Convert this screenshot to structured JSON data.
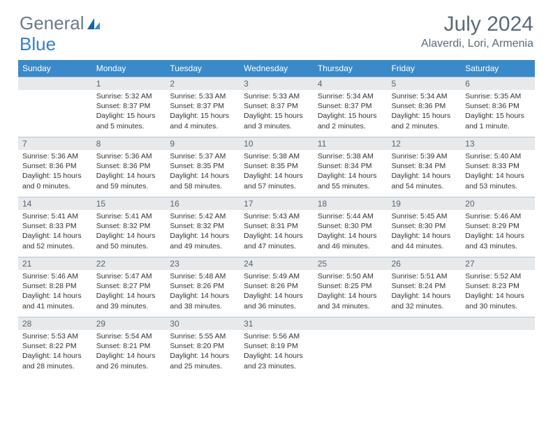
{
  "logo": {
    "text1": "General",
    "text2": "Blue"
  },
  "title": "July 2024",
  "location": "Alaverdi, Lori, Armenia",
  "dayNames": [
    "Sunday",
    "Monday",
    "Tuesday",
    "Wednesday",
    "Thursday",
    "Friday",
    "Saturday"
  ],
  "colors": {
    "headerBar": "#3a8ac9",
    "dayNumBg": "#e7e9eb",
    "border": "#b4c3d2",
    "titleText": "#5a6a78",
    "logoGray": "#6b7a8a",
    "logoBlue": "#3a7fc4",
    "bodyText": "#333333"
  },
  "weeks": [
    [
      {
        "num": "",
        "lines": []
      },
      {
        "num": "1",
        "lines": [
          "Sunrise: 5:32 AM",
          "Sunset: 8:37 PM",
          "Daylight: 15 hours",
          "and 5 minutes."
        ]
      },
      {
        "num": "2",
        "lines": [
          "Sunrise: 5:33 AM",
          "Sunset: 8:37 PM",
          "Daylight: 15 hours",
          "and 4 minutes."
        ]
      },
      {
        "num": "3",
        "lines": [
          "Sunrise: 5:33 AM",
          "Sunset: 8:37 PM",
          "Daylight: 15 hours",
          "and 3 minutes."
        ]
      },
      {
        "num": "4",
        "lines": [
          "Sunrise: 5:34 AM",
          "Sunset: 8:37 PM",
          "Daylight: 15 hours",
          "and 2 minutes."
        ]
      },
      {
        "num": "5",
        "lines": [
          "Sunrise: 5:34 AM",
          "Sunset: 8:36 PM",
          "Daylight: 15 hours",
          "and 2 minutes."
        ]
      },
      {
        "num": "6",
        "lines": [
          "Sunrise: 5:35 AM",
          "Sunset: 8:36 PM",
          "Daylight: 15 hours",
          "and 1 minute."
        ]
      }
    ],
    [
      {
        "num": "7",
        "lines": [
          "Sunrise: 5:36 AM",
          "Sunset: 8:36 PM",
          "Daylight: 15 hours",
          "and 0 minutes."
        ]
      },
      {
        "num": "8",
        "lines": [
          "Sunrise: 5:36 AM",
          "Sunset: 8:36 PM",
          "Daylight: 14 hours",
          "and 59 minutes."
        ]
      },
      {
        "num": "9",
        "lines": [
          "Sunrise: 5:37 AM",
          "Sunset: 8:35 PM",
          "Daylight: 14 hours",
          "and 58 minutes."
        ]
      },
      {
        "num": "10",
        "lines": [
          "Sunrise: 5:38 AM",
          "Sunset: 8:35 PM",
          "Daylight: 14 hours",
          "and 57 minutes."
        ]
      },
      {
        "num": "11",
        "lines": [
          "Sunrise: 5:38 AM",
          "Sunset: 8:34 PM",
          "Daylight: 14 hours",
          "and 55 minutes."
        ]
      },
      {
        "num": "12",
        "lines": [
          "Sunrise: 5:39 AM",
          "Sunset: 8:34 PM",
          "Daylight: 14 hours",
          "and 54 minutes."
        ]
      },
      {
        "num": "13",
        "lines": [
          "Sunrise: 5:40 AM",
          "Sunset: 8:33 PM",
          "Daylight: 14 hours",
          "and 53 minutes."
        ]
      }
    ],
    [
      {
        "num": "14",
        "lines": [
          "Sunrise: 5:41 AM",
          "Sunset: 8:33 PM",
          "Daylight: 14 hours",
          "and 52 minutes."
        ]
      },
      {
        "num": "15",
        "lines": [
          "Sunrise: 5:41 AM",
          "Sunset: 8:32 PM",
          "Daylight: 14 hours",
          "and 50 minutes."
        ]
      },
      {
        "num": "16",
        "lines": [
          "Sunrise: 5:42 AM",
          "Sunset: 8:32 PM",
          "Daylight: 14 hours",
          "and 49 minutes."
        ]
      },
      {
        "num": "17",
        "lines": [
          "Sunrise: 5:43 AM",
          "Sunset: 8:31 PM",
          "Daylight: 14 hours",
          "and 47 minutes."
        ]
      },
      {
        "num": "18",
        "lines": [
          "Sunrise: 5:44 AM",
          "Sunset: 8:30 PM",
          "Daylight: 14 hours",
          "and 46 minutes."
        ]
      },
      {
        "num": "19",
        "lines": [
          "Sunrise: 5:45 AM",
          "Sunset: 8:30 PM",
          "Daylight: 14 hours",
          "and 44 minutes."
        ]
      },
      {
        "num": "20",
        "lines": [
          "Sunrise: 5:46 AM",
          "Sunset: 8:29 PM",
          "Daylight: 14 hours",
          "and 43 minutes."
        ]
      }
    ],
    [
      {
        "num": "21",
        "lines": [
          "Sunrise: 5:46 AM",
          "Sunset: 8:28 PM",
          "Daylight: 14 hours",
          "and 41 minutes."
        ]
      },
      {
        "num": "22",
        "lines": [
          "Sunrise: 5:47 AM",
          "Sunset: 8:27 PM",
          "Daylight: 14 hours",
          "and 39 minutes."
        ]
      },
      {
        "num": "23",
        "lines": [
          "Sunrise: 5:48 AM",
          "Sunset: 8:26 PM",
          "Daylight: 14 hours",
          "and 38 minutes."
        ]
      },
      {
        "num": "24",
        "lines": [
          "Sunrise: 5:49 AM",
          "Sunset: 8:26 PM",
          "Daylight: 14 hours",
          "and 36 minutes."
        ]
      },
      {
        "num": "25",
        "lines": [
          "Sunrise: 5:50 AM",
          "Sunset: 8:25 PM",
          "Daylight: 14 hours",
          "and 34 minutes."
        ]
      },
      {
        "num": "26",
        "lines": [
          "Sunrise: 5:51 AM",
          "Sunset: 8:24 PM",
          "Daylight: 14 hours",
          "and 32 minutes."
        ]
      },
      {
        "num": "27",
        "lines": [
          "Sunrise: 5:52 AM",
          "Sunset: 8:23 PM",
          "Daylight: 14 hours",
          "and 30 minutes."
        ]
      }
    ],
    [
      {
        "num": "28",
        "lines": [
          "Sunrise: 5:53 AM",
          "Sunset: 8:22 PM",
          "Daylight: 14 hours",
          "and 28 minutes."
        ]
      },
      {
        "num": "29",
        "lines": [
          "Sunrise: 5:54 AM",
          "Sunset: 8:21 PM",
          "Daylight: 14 hours",
          "and 26 minutes."
        ]
      },
      {
        "num": "30",
        "lines": [
          "Sunrise: 5:55 AM",
          "Sunset: 8:20 PM",
          "Daylight: 14 hours",
          "and 25 minutes."
        ]
      },
      {
        "num": "31",
        "lines": [
          "Sunrise: 5:56 AM",
          "Sunset: 8:19 PM",
          "Daylight: 14 hours",
          "and 23 minutes."
        ]
      },
      {
        "num": "",
        "lines": []
      },
      {
        "num": "",
        "lines": []
      },
      {
        "num": "",
        "lines": []
      }
    ]
  ]
}
